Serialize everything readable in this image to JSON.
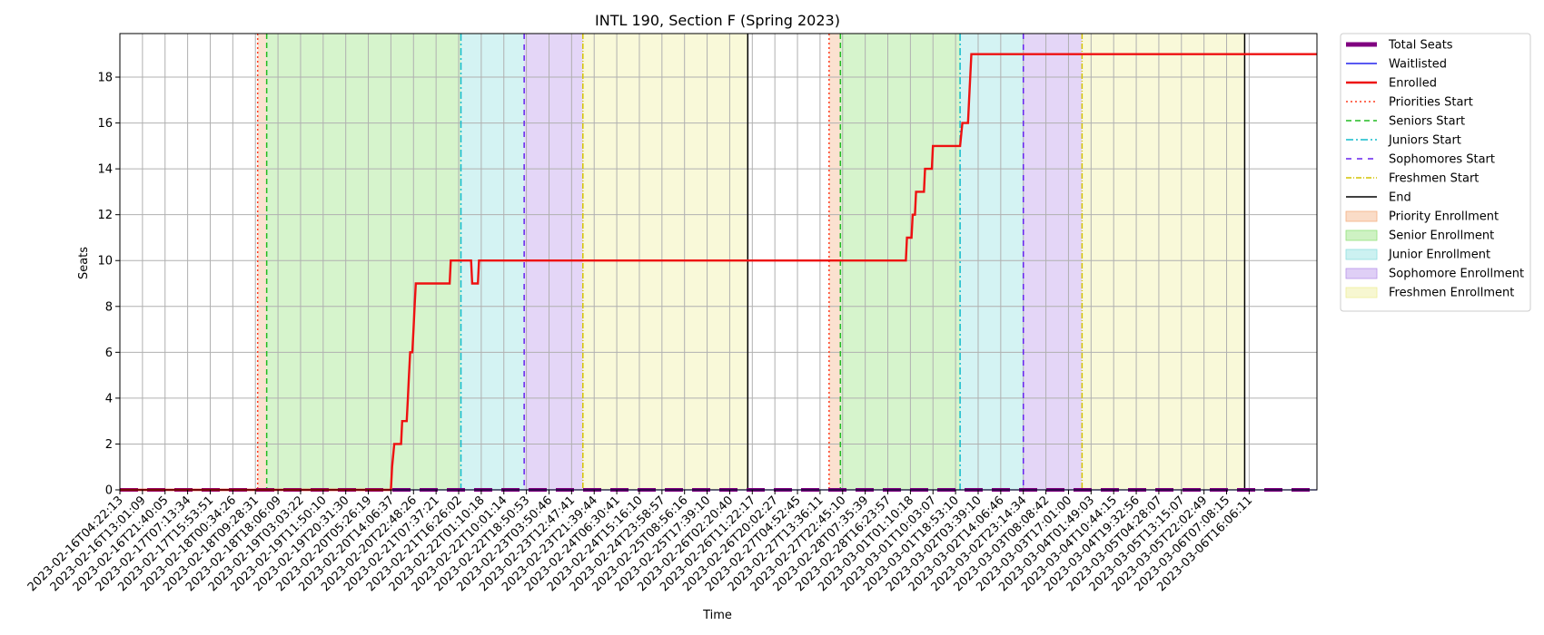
{
  "chart_data": {
    "type": "line",
    "title": "INTL 190, Section F (Spring 2023)",
    "xlabel": "Time",
    "ylabel": "Seats",
    "ylim": [
      0,
      19.9
    ],
    "yticks": [
      0,
      2,
      4,
      6,
      8,
      10,
      12,
      14,
      16,
      18
    ],
    "grid": true,
    "legend_position": "outside-right",
    "x_tick_labels": [
      "2023-02-16T04:22:13",
      "2023-02-16T13:01:09",
      "2023-02-16T21:40:05",
      "2023-02-17T07:13:34",
      "2023-02-17T15:53:51",
      "2023-02-18T00:34:26",
      "2023-02-18T09:28:31",
      "2023-02-18T18:06:09",
      "2023-02-19T03:03:22",
      "2023-02-19T11:50:10",
      "2023-02-19T20:31:30",
      "2023-02-20T05:26:19",
      "2023-02-20T14:06:37",
      "2023-02-20T22:48:26",
      "2023-02-21T07:37:21",
      "2023-02-21T16:26:02",
      "2023-02-22T01:10:18",
      "2023-02-22T10:01:14",
      "2023-02-22T18:50:53",
      "2023-02-23T03:50:46",
      "2023-02-23T12:47:41",
      "2023-02-23T21:39:44",
      "2023-02-24T06:30:41",
      "2023-02-24T15:16:10",
      "2023-02-24T23:58:57",
      "2023-02-25T08:56:16",
      "2023-02-25T17:39:10",
      "2023-02-26T02:20:40",
      "2023-02-26T11:22:17",
      "2023-02-26T20:02:27",
      "2023-02-27T04:52:45",
      "2023-02-27T13:36:11",
      "2023-02-27T22:45:10",
      "2023-02-28T07:35:39",
      "2023-02-28T16:23:57",
      "2023-03-01T01:10:18",
      "2023-03-01T10:03:07",
      "2023-03-01T18:53:10",
      "2023-03-02T03:39:10",
      "2023-03-02T14:06:46",
      "2023-03-02T23:14:34",
      "2023-03-03T08:08:42",
      "2023-03-03T17:01:00",
      "2023-03-04T01:49:03",
      "2023-03-04T10:44:15",
      "2023-03-04T19:32:56",
      "2023-03-05T04:28:07",
      "2023-03-05T13:15:07",
      "2023-03-05T22:02:49",
      "2023-03-06T07:08:15",
      "2023-03-06T16:06:11"
    ],
    "x_range_index": [
      0,
      53
    ],
    "phases": [
      {
        "name": "Priority Enrollment",
        "start": 6.1,
        "end": 6.5,
        "color": "#f4b183"
      },
      {
        "name": "Senior Enrollment",
        "start": 6.5,
        "end": 15.1,
        "color": "#92e27a"
      },
      {
        "name": "Junior Enrollment",
        "start": 15.1,
        "end": 17.9,
        "color": "#8fdfe0"
      },
      {
        "name": "Sophomore Enrollment",
        "start": 17.9,
        "end": 20.5,
        "color": "#b894ea"
      },
      {
        "name": "Freshmen Enrollment",
        "start": 20.5,
        "end": 27.8,
        "color": "#eeee9a"
      },
      {
        "name": "Priority Enrollment",
        "start": 31.4,
        "end": 31.9,
        "color": "#f4b183"
      },
      {
        "name": "Senior Enrollment",
        "start": 31.9,
        "end": 37.2,
        "color": "#92e27a"
      },
      {
        "name": "Junior Enrollment",
        "start": 37.2,
        "end": 40.0,
        "color": "#8fdfe0"
      },
      {
        "name": "Sophomore Enrollment",
        "start": 40.0,
        "end": 42.6,
        "color": "#b894ea"
      },
      {
        "name": "Freshmen Enrollment",
        "start": 42.6,
        "end": 49.8,
        "color": "#eeee9a"
      }
    ],
    "vlines": [
      {
        "name": "Priorities Start",
        "x": [
          6.1,
          31.4
        ],
        "color": "#ff3b1f",
        "dash": "2,3"
      },
      {
        "name": "Seniors Start",
        "x": [
          6.5,
          31.9
        ],
        "color": "#22bb22",
        "dash": "6,4"
      },
      {
        "name": "Juniors Start",
        "x": [
          15.1,
          37.2
        ],
        "color": "#11bbcc",
        "dash": "8,3,2,3"
      },
      {
        "name": "Sophomores Start",
        "x": [
          17.9,
          40.0
        ],
        "color": "#6622ee",
        "dash": "6,6"
      },
      {
        "name": "Freshmen Start",
        "x": [
          20.5,
          42.6
        ],
        "color": "#d4c400",
        "dash": "6,2,1,2"
      },
      {
        "name": "End",
        "x": [
          27.8,
          49.8
        ],
        "color": "#000000",
        "dash": ""
      }
    ],
    "series": [
      {
        "name": "Total Seats",
        "color": "#800080",
        "points": [
          [
            0,
            0
          ],
          [
            53,
            0
          ]
        ]
      },
      {
        "name": "Waitlisted",
        "color": "#2222ee",
        "points": [
          [
            0,
            0
          ],
          [
            53,
            0
          ]
        ]
      },
      {
        "name": "Enrolled",
        "color": "#ee1111",
        "points": [
          [
            0,
            0
          ],
          [
            12.0,
            0
          ],
          [
            12.05,
            1
          ],
          [
            12.15,
            2
          ],
          [
            12.45,
            2
          ],
          [
            12.5,
            3
          ],
          [
            12.7,
            3
          ],
          [
            12.75,
            4
          ],
          [
            12.8,
            5
          ],
          [
            12.85,
            6
          ],
          [
            12.95,
            6
          ],
          [
            13.0,
            7
          ],
          [
            13.05,
            8
          ],
          [
            13.1,
            9
          ],
          [
            14.6,
            9
          ],
          [
            14.65,
            10
          ],
          [
            15.2,
            10
          ],
          [
            15.55,
            10
          ],
          [
            15.6,
            9
          ],
          [
            15.85,
            9
          ],
          [
            15.9,
            10
          ],
          [
            34.8,
            10
          ],
          [
            34.85,
            11
          ],
          [
            35.05,
            11
          ],
          [
            35.1,
            12
          ],
          [
            35.2,
            12
          ],
          [
            35.25,
            13
          ],
          [
            35.6,
            13
          ],
          [
            35.65,
            14
          ],
          [
            35.95,
            14
          ],
          [
            36.0,
            15
          ],
          [
            37.2,
            15
          ],
          [
            37.3,
            16
          ],
          [
            37.55,
            16
          ],
          [
            37.6,
            17
          ],
          [
            37.7,
            19
          ],
          [
            53,
            19
          ]
        ]
      }
    ],
    "legend": [
      {
        "label": "Total Seats",
        "kind": "thick",
        "color": "#800080"
      },
      {
        "label": "Waitlisted",
        "kind": "line",
        "color": "#2222ee"
      },
      {
        "label": "Enrolled",
        "kind": "line2",
        "color": "#ee1111"
      },
      {
        "label": "Priorities Start",
        "kind": "dash",
        "color": "#ff3b1f",
        "dash": "2,3"
      },
      {
        "label": "Seniors Start",
        "kind": "dash",
        "color": "#22bb22",
        "dash": "6,4"
      },
      {
        "label": "Juniors Start",
        "kind": "dash",
        "color": "#11bbcc",
        "dash": "8,3,2,3"
      },
      {
        "label": "Sophomores Start",
        "kind": "dash",
        "color": "#6622ee",
        "dash": "6,6"
      },
      {
        "label": "Freshmen Start",
        "kind": "dash",
        "color": "#d4c400",
        "dash": "6,2,1,2"
      },
      {
        "label": "End",
        "kind": "line",
        "color": "#000000"
      },
      {
        "label": "Priority Enrollment",
        "kind": "patch",
        "color": "#f4b183"
      },
      {
        "label": "Senior Enrollment",
        "kind": "patch",
        "color": "#92e27a"
      },
      {
        "label": "Junior Enrollment",
        "kind": "patch",
        "color": "#8fdfe0"
      },
      {
        "label": "Sophomore Enrollment",
        "kind": "patch",
        "color": "#b894ea"
      },
      {
        "label": "Freshmen Enrollment",
        "kind": "patch",
        "color": "#eeee9a"
      }
    ]
  }
}
